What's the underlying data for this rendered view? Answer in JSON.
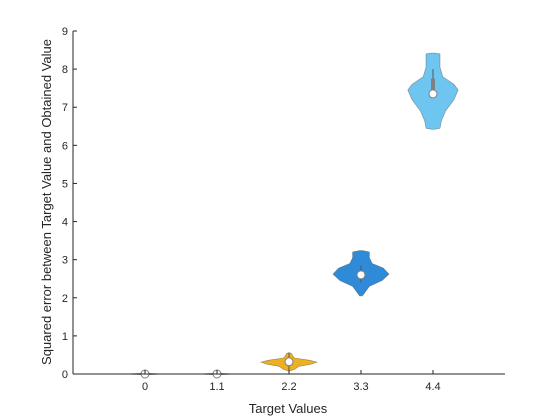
{
  "chart_data": {
    "type": "violin",
    "title": "",
    "xlabel": "Target Values",
    "ylabel": "Squared error between Target Value and Obtained Value",
    "categories": [
      "0",
      "1.1",
      "2.2",
      "3.3",
      "4.4"
    ],
    "ylim": [
      0,
      9
    ],
    "yticks": [
      0,
      1,
      2,
      3,
      4,
      5,
      6,
      7,
      8,
      9
    ],
    "grid": false,
    "legend": "none",
    "box_style": "open-top-and-right",
    "series": [
      {
        "category": "0",
        "color": "#cfcfcf",
        "median": 0.0,
        "q1": 0.0,
        "q3": 0.0,
        "min": 0.0,
        "max": 0.0,
        "density": [
          [
            -0.02,
            0.02
          ],
          [
            0.0,
            0.28
          ],
          [
            0.02,
            0.02
          ]
        ]
      },
      {
        "category": "1.1",
        "color": "#cfcfcf",
        "median": 0.0,
        "q1": 0.0,
        "q3": 0.0,
        "min": 0.0,
        "max": 0.0,
        "density": [
          [
            -0.02,
            0.02
          ],
          [
            0.0,
            0.28
          ],
          [
            0.02,
            0.02
          ]
        ]
      },
      {
        "category": "2.2",
        "color": "#edb120",
        "median": 0.32,
        "q1": 0.28,
        "q3": 0.36,
        "min": 0.1,
        "max": 0.55,
        "density": [
          [
            0.08,
            0.01
          ],
          [
            0.12,
            0.08
          ],
          [
            0.2,
            0.14
          ],
          [
            0.26,
            0.32
          ],
          [
            0.31,
            0.4
          ],
          [
            0.36,
            0.3
          ],
          [
            0.42,
            0.08
          ],
          [
            0.48,
            0.05
          ],
          [
            0.53,
            0.04
          ],
          [
            0.56,
            0.01
          ]
        ]
      },
      {
        "category": "3.3",
        "color": "#2f8ad7",
        "median": 2.6,
        "q1": 2.5,
        "q3": 2.7,
        "min": 2.4,
        "max": 2.85,
        "density": [
          [
            2.05,
            0.02
          ],
          [
            2.15,
            0.06
          ],
          [
            2.3,
            0.12
          ],
          [
            2.45,
            0.3
          ],
          [
            2.62,
            0.4
          ],
          [
            2.78,
            0.32
          ],
          [
            2.9,
            0.16
          ],
          [
            3.05,
            0.12
          ],
          [
            3.2,
            0.12
          ],
          [
            3.24,
            0.02
          ]
        ]
      },
      {
        "category": "4.4",
        "color": "#6ec6f0",
        "median": 7.35,
        "q1": 7.3,
        "q3": 7.75,
        "min": 7.25,
        "max": 8.0,
        "density": [
          [
            6.42,
            0.02
          ],
          [
            6.45,
            0.1
          ],
          [
            6.65,
            0.12
          ],
          [
            6.9,
            0.18
          ],
          [
            7.2,
            0.3
          ],
          [
            7.45,
            0.36
          ],
          [
            7.6,
            0.3
          ],
          [
            7.8,
            0.14
          ],
          [
            8.05,
            0.1
          ],
          [
            8.4,
            0.1
          ],
          [
            8.42,
            0.02
          ]
        ]
      }
    ]
  }
}
